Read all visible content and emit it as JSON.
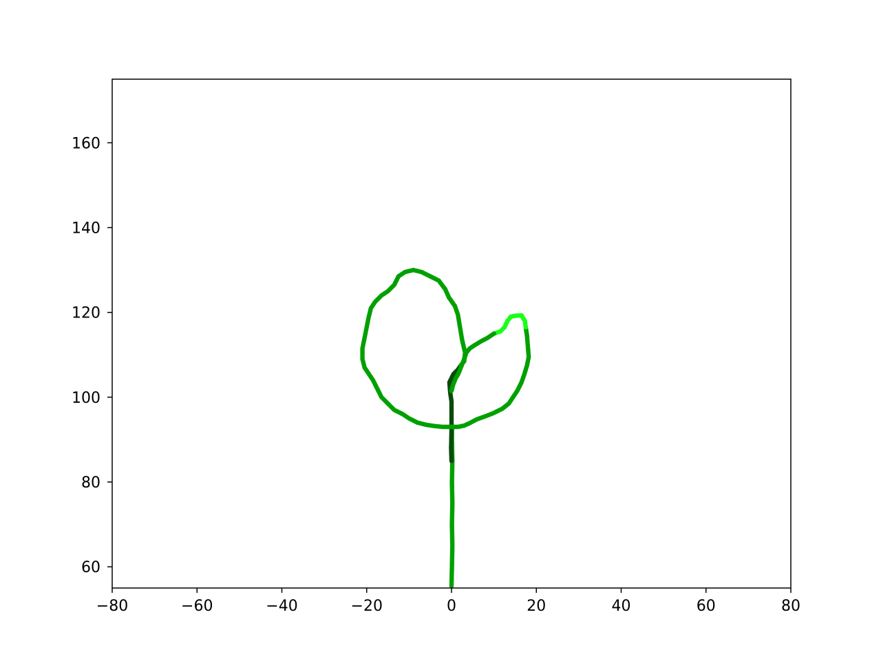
{
  "chart_data": {
    "type": "scatter",
    "title": "",
    "xlabel": "",
    "ylabel": "",
    "xlim": [
      -80,
      80
    ],
    "ylim": [
      55,
      175
    ],
    "xticks": [
      -80,
      -60,
      -40,
      -20,
      0,
      20,
      40,
      60,
      80
    ],
    "xtick_labels": [
      "−80",
      "−60",
      "−40",
      "−20",
      "0",
      "20",
      "40",
      "60",
      "80"
    ],
    "yticks": [
      60,
      80,
      100,
      120,
      140,
      160
    ],
    "ytick_labels": [
      "60",
      "80",
      "100",
      "120",
      "140",
      "160"
    ],
    "grid": false,
    "legend": "none",
    "colors": {
      "dark": "#0b4a0b",
      "mid": "#00a000",
      "bright": "#19ff19"
    },
    "series": [
      {
        "color_key": "mid",
        "path": [
          [
            0.0,
            55.5
          ],
          [
            0.1,
            60
          ],
          [
            0.2,
            65
          ],
          [
            0.1,
            70
          ],
          [
            0.2,
            75
          ],
          [
            0.1,
            80
          ],
          [
            0.2,
            85
          ],
          [
            0.1,
            90
          ],
          [
            0.1,
            93
          ]
        ]
      },
      {
        "color_key": "dark",
        "path": [
          [
            0.0,
            85
          ],
          [
            -0.1,
            88
          ],
          [
            0.0,
            92
          ],
          [
            0.0,
            96
          ],
          [
            0.0,
            99
          ],
          [
            -0.3,
            101
          ],
          [
            -0.5,
            103.5
          ],
          [
            0.5,
            105.5
          ],
          [
            1.5,
            106.5
          ],
          [
            2.2,
            107.5
          ]
        ]
      },
      {
        "color_key": "mid",
        "path": [
          [
            2.2,
            107.5
          ],
          [
            3.0,
            108.5
          ],
          [
            3.2,
            110.5
          ],
          [
            2.5,
            113.5
          ],
          [
            2.0,
            116.5
          ],
          [
            1.5,
            119.5
          ],
          [
            0.8,
            121.5
          ],
          [
            -0.6,
            123.5
          ],
          [
            -1.5,
            125.5
          ],
          [
            -3.0,
            127.5
          ],
          [
            -5.0,
            128.5
          ],
          [
            -7.0,
            129.5
          ],
          [
            -9.0,
            130.0
          ],
          [
            -11.0,
            129.5
          ],
          [
            -12.5,
            128.5
          ],
          [
            -13.5,
            126.5
          ],
          [
            -15.0,
            125.0
          ],
          [
            -16.5,
            124.0
          ],
          [
            -18.0,
            122.5
          ],
          [
            -19.0,
            121.0
          ],
          [
            -19.5,
            119.0
          ],
          [
            -20.0,
            116.5
          ],
          [
            -20.5,
            114.0
          ],
          [
            -21.0,
            111.5
          ],
          [
            -21.0,
            109.0
          ],
          [
            -20.5,
            107.0
          ],
          [
            -19.5,
            105.5
          ],
          [
            -18.5,
            104.0
          ],
          [
            -17.5,
            102.0
          ],
          [
            -16.5,
            100.0
          ],
          [
            -15.0,
            98.5
          ],
          [
            -13.5,
            97.0
          ],
          [
            -11.5,
            96.0
          ],
          [
            -10.0,
            95.0
          ],
          [
            -8.0,
            94.0
          ],
          [
            -6.0,
            93.5
          ],
          [
            -4.0,
            93.2
          ],
          [
            -2.0,
            93.0
          ],
          [
            0.0,
            93.0
          ],
          [
            1.5,
            93.0
          ],
          [
            3.0,
            93.3
          ],
          [
            4.5,
            94.0
          ],
          [
            6.0,
            94.8
          ],
          [
            8.0,
            95.5
          ],
          [
            10.0,
            96.3
          ],
          [
            12.0,
            97.3
          ],
          [
            13.5,
            98.5
          ],
          [
            14.5,
            100.0
          ],
          [
            15.5,
            101.5
          ],
          [
            16.5,
            103.5
          ],
          [
            17.2,
            105.5
          ],
          [
            17.8,
            107.5
          ],
          [
            18.2,
            109.5
          ],
          [
            18.0,
            112.0
          ],
          [
            17.8,
            114.5
          ],
          [
            17.5,
            116.5
          ]
        ]
      },
      {
        "color_key": "bright",
        "path": [
          [
            17.5,
            116.5
          ],
          [
            17.3,
            118.0
          ],
          [
            16.5,
            119.3
          ],
          [
            15.0,
            119.2
          ],
          [
            14.0,
            119.0
          ],
          [
            13.2,
            118.0
          ],
          [
            12.5,
            116.5
          ],
          [
            11.5,
            115.5
          ],
          [
            10.0,
            115.0
          ]
        ]
      },
      {
        "color_key": "mid",
        "path": [
          [
            10.0,
            115.0
          ],
          [
            8.5,
            114.0
          ],
          [
            7.0,
            113.2
          ],
          [
            5.5,
            112.3
          ],
          [
            4.3,
            111.5
          ],
          [
            3.5,
            110.5
          ],
          [
            2.8,
            108.5
          ],
          [
            2.2,
            107.0
          ],
          [
            1.6,
            105.5
          ],
          [
            1.0,
            104.5
          ],
          [
            0.4,
            103.0
          ],
          [
            0.0,
            101.5
          ]
        ]
      }
    ]
  }
}
